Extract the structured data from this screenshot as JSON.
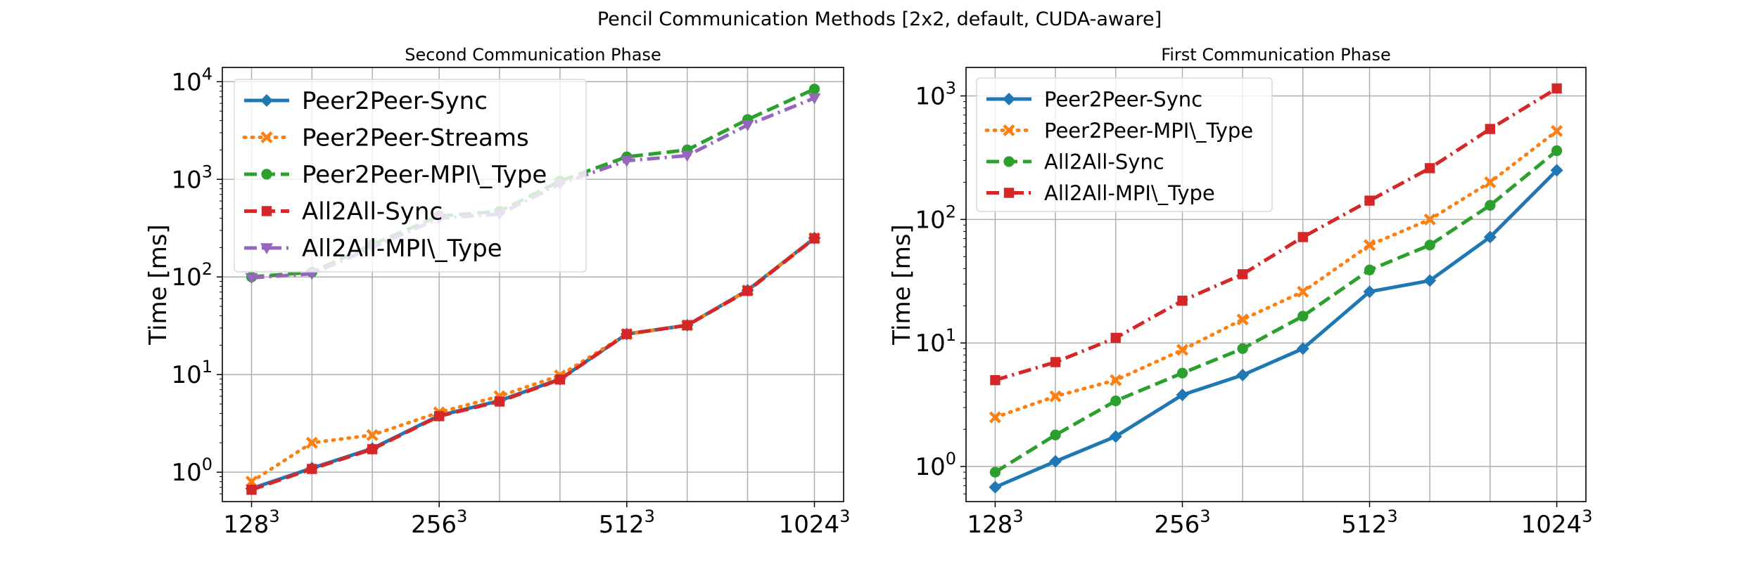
{
  "figure": {
    "title": "Pencil Communication Methods [2x2, default, CUDA-aware]"
  },
  "colors": {
    "blue": "#1f77b4",
    "orange": "#ff7f0e",
    "green": "#2ca02c",
    "red": "#d62728",
    "purple": "#9467bd"
  },
  "chart_data": [
    {
      "type": "line",
      "title": "Second Communication Phase",
      "ylabel": "Time [ms]",
      "xlabel": "",
      "yscale": "log",
      "ylim": [
        0.5,
        14000
      ],
      "grid": true,
      "legend_position": "upper-left",
      "x": [
        128,
        160,
        200,
        256,
        320,
        400,
        512,
        640,
        800,
        1024
      ],
      "xticks": [
        {
          "value": 128,
          "base": "128",
          "exp": "3"
        },
        {
          "value": 256,
          "base": "256",
          "exp": "3"
        },
        {
          "value": 512,
          "base": "512",
          "exp": "3"
        },
        {
          "value": 1024,
          "base": "1024",
          "exp": "3"
        }
      ],
      "yticks": [
        {
          "value": 1,
          "exp": "0"
        },
        {
          "value": 10,
          "exp": "1"
        },
        {
          "value": 100,
          "exp": "2"
        },
        {
          "value": 1000,
          "exp": "3"
        },
        {
          "value": 10000,
          "exp": "4"
        }
      ],
      "series": [
        {
          "name": "Peer2Peer-Sync",
          "color": "#1f77b4",
          "dash": "solid",
          "marker": "diamond",
          "values": [
            0.68,
            1.1,
            1.75,
            3.8,
            5.4,
            9.0,
            26,
            32,
            73,
            250
          ]
        },
        {
          "name": "Peer2Peer-Streams",
          "color": "#ff7f0e",
          "dash": "dotted",
          "marker": "x",
          "values": [
            0.8,
            2.0,
            2.4,
            4.1,
            6.0,
            9.8,
            26,
            32,
            73,
            250
          ]
        },
        {
          "name": "Peer2Peer-MPI\\_Type",
          "color": "#2ca02c",
          "dash": "dashed",
          "marker": "circle",
          "values": [
            100,
            112,
            215,
            420,
            470,
            960,
            1700,
            2000,
            4100,
            8400
          ]
        },
        {
          "name": "All2All-Sync",
          "color": "#d62728",
          "dash": "dashed",
          "marker": "square",
          "values": [
            0.66,
            1.08,
            1.72,
            3.75,
            5.3,
            8.9,
            26,
            32,
            72,
            248
          ]
        },
        {
          "name": "All2All-MPI\\_Type",
          "color": "#9467bd",
          "dash": "dashdot",
          "marker": "triangle-down",
          "values": [
            98,
            108,
            200,
            400,
            440,
            900,
            1550,
            1750,
            3600,
            6800
          ]
        }
      ]
    },
    {
      "type": "line",
      "title": "First Communication Phase",
      "ylabel": "Time [ms]",
      "xlabel": "",
      "yscale": "log",
      "ylim": [
        0.52,
        1700
      ],
      "grid": true,
      "legend_position": "upper-left",
      "x": [
        128,
        160,
        200,
        256,
        320,
        400,
        512,
        640,
        800,
        1024
      ],
      "xticks": [
        {
          "value": 128,
          "base": "128",
          "exp": "3"
        },
        {
          "value": 256,
          "base": "256",
          "exp": "3"
        },
        {
          "value": 512,
          "base": "512",
          "exp": "3"
        },
        {
          "value": 1024,
          "base": "1024",
          "exp": "3"
        }
      ],
      "yticks": [
        {
          "value": 1,
          "exp": "0"
        },
        {
          "value": 10,
          "exp": "1"
        },
        {
          "value": 100,
          "exp": "2"
        },
        {
          "value": 1000,
          "exp": "3"
        }
      ],
      "series": [
        {
          "name": "Peer2Peer-Sync",
          "color": "#1f77b4",
          "dash": "solid",
          "marker": "diamond",
          "values": [
            0.68,
            1.1,
            1.75,
            3.8,
            5.5,
            9.0,
            26,
            32,
            72,
            250
          ]
        },
        {
          "name": "Peer2Peer-MPI\\_Type",
          "color": "#ff7f0e",
          "dash": "dotted",
          "marker": "x",
          "values": [
            2.5,
            3.7,
            5.0,
            8.8,
            15.5,
            26,
            62,
            100,
            200,
            520
          ]
        },
        {
          "name": "All2All-Sync",
          "color": "#2ca02c",
          "dash": "dashed",
          "marker": "circle",
          "values": [
            0.9,
            1.8,
            3.4,
            5.7,
            9.0,
            16.5,
            39,
            62,
            130,
            360
          ]
        },
        {
          "name": "All2All-MPI\\_Type",
          "color": "#d62728",
          "dash": "dashdot",
          "marker": "square",
          "values": [
            5.0,
            7.0,
            11,
            22,
            36,
            72,
            142,
            260,
            540,
            1150
          ]
        }
      ]
    }
  ]
}
